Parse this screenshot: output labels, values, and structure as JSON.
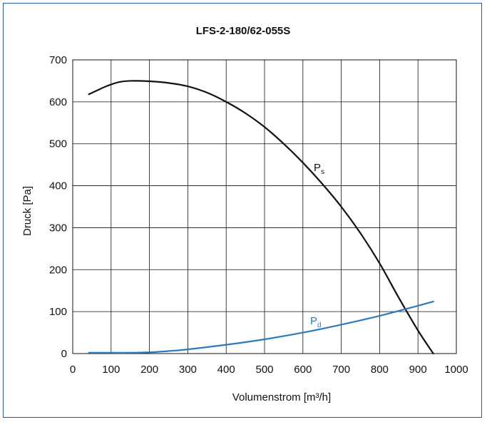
{
  "chart_data": {
    "type": "line",
    "title": "LFS-2-180/62-055S",
    "xlabel": "Volumenstrom [m³/h]",
    "ylabel": "Druck [Pa]",
    "xlim": [
      0,
      1000
    ],
    "ylim": [
      0,
      700
    ],
    "xticks": [
      0,
      100,
      200,
      300,
      400,
      500,
      600,
      700,
      800,
      900,
      1000
    ],
    "yticks": [
      0,
      100,
      200,
      300,
      400,
      500,
      600,
      700
    ],
    "grid": true,
    "series": [
      {
        "name": "Ps",
        "label_main": "P",
        "label_sub": "s",
        "color": "#111111",
        "points": [
          [
            42,
            618
          ],
          [
            70,
            630
          ],
          [
            90,
            638
          ],
          [
            120,
            647
          ],
          [
            150,
            650
          ],
          [
            200,
            649
          ],
          [
            250,
            645
          ],
          [
            300,
            637
          ],
          [
            350,
            622
          ],
          [
            400,
            600
          ],
          [
            450,
            573
          ],
          [
            500,
            540
          ],
          [
            550,
            500
          ],
          [
            600,
            455
          ],
          [
            650,
            405
          ],
          [
            700,
            350
          ],
          [
            750,
            287
          ],
          [
            800,
            215
          ],
          [
            850,
            133
          ],
          [
            900,
            55
          ],
          [
            940,
            0
          ]
        ]
      },
      {
        "name": "Pd",
        "label_main": "P",
        "label_sub": "d",
        "color": "#2a7ac0",
        "points": [
          [
            42,
            2
          ],
          [
            100,
            2
          ],
          [
            150,
            2
          ],
          [
            200,
            3
          ],
          [
            250,
            6
          ],
          [
            300,
            10
          ],
          [
            400,
            21
          ],
          [
            500,
            34
          ],
          [
            600,
            50
          ],
          [
            700,
            69
          ],
          [
            800,
            90
          ],
          [
            900,
            114
          ],
          [
            940,
            124
          ]
        ]
      }
    ]
  },
  "colors": {
    "frame": "#1f5fa8",
    "grid": "#111111"
  }
}
